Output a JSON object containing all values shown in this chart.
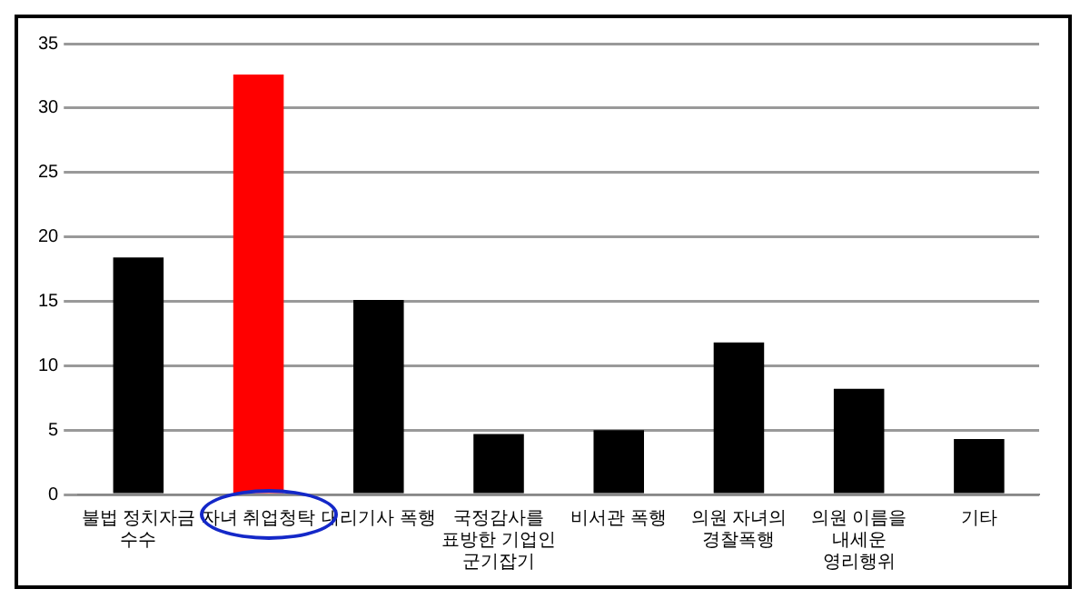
{
  "chart_data": {
    "type": "bar",
    "categories": [
      "불법 정치자금\n수수",
      "자녀 취업청탁",
      "대리기사 폭행",
      "국정감사를\n표방한 기업인\n군기잡기",
      "비서관 폭행",
      "의원 자녀의\n경찰폭행",
      "의원 이름을\n내세운\n영리행위",
      "기타"
    ],
    "values": [
      18.4,
      32.6,
      15.1,
      4.7,
      5.0,
      11.8,
      8.2,
      4.3
    ],
    "colors": [
      "#000000",
      "#ff0000",
      "#000000",
      "#000000",
      "#000000",
      "#000000",
      "#000000",
      "#000000"
    ],
    "ylim": [
      0,
      35
    ],
    "yticks": [
      0,
      5,
      10,
      15,
      20,
      25,
      30,
      35
    ],
    "grid": "y",
    "legend": false
  }
}
